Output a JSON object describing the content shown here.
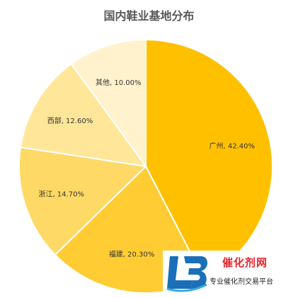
{
  "chart_data": {
    "type": "pie",
    "title": "国内鞋业基地分布",
    "slices": [
      {
        "label": "广州",
        "value": 42.4,
        "display": "广州, 42.40%",
        "color": "#FFC000"
      },
      {
        "label": "福建",
        "value": 20.3,
        "display": "福建, 20.30%",
        "color": "#FFCD33"
      },
      {
        "label": "浙江",
        "value": 14.7,
        "display": "浙江, 14.70%",
        "color": "#FFD966"
      },
      {
        "label": "西部",
        "value": 12.6,
        "display": "西部, 12.60%",
        "color": "#FFE699"
      },
      {
        "label": "其他",
        "value": 10.0,
        "display": "其他, 10.00%",
        "color": "#FFF2CC"
      }
    ],
    "start": "12 o'clock",
    "direction": "clockwise",
    "legend": "none"
  },
  "watermark": {
    "brand": "催化剂网",
    "slogan": "专业催化剂交易平台",
    "logo_letters": "LB",
    "brand_color": "#E8252D",
    "logo_color": "#1A6FB8"
  }
}
